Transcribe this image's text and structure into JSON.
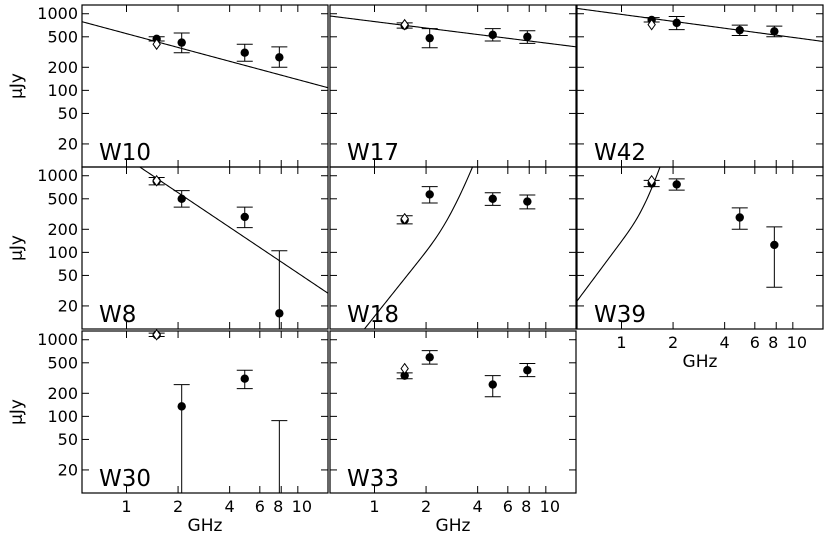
{
  "chart_data": {
    "type": "scatter",
    "xlabel": "GHz",
    "ylabel": "µJy",
    "x_scale": "log",
    "y_scale": "log",
    "xlim": [
      0.55,
      15
    ],
    "ylim": [
      10,
      1300
    ],
    "x_ticks": [
      1,
      2,
      4,
      6,
      8,
      10
    ],
    "x_tick_labels": [
      "1",
      "2",
      "4",
      "6",
      "8",
      "10"
    ],
    "y_ticks": [
      20,
      50,
      100,
      200,
      500,
      1000
    ],
    "y_tick_labels": [
      "20",
      "50",
      "100",
      "200",
      "500",
      "1000"
    ],
    "panels": [
      {
        "label": "W10",
        "points": [
          {
            "x": 1.5,
            "y": 470,
            "lo": 440,
            "hi": 500
          },
          {
            "x": 2.1,
            "y": 420,
            "lo": 310,
            "hi": 560
          },
          {
            "x": 4.9,
            "y": 310,
            "lo": 240,
            "hi": 400
          },
          {
            "x": 7.8,
            "y": 270,
            "lo": 200,
            "hi": 370
          }
        ],
        "open_points": [
          {
            "x": 1.5,
            "y": 400
          }
        ],
        "fit": {
          "kind": "powerlaw",
          "x0": 1,
          "s0": 550,
          "alpha": -0.6
        }
      },
      {
        "label": "W17",
        "points": [
          {
            "x": 1.5,
            "y": 700,
            "lo": 650,
            "hi": 760
          },
          {
            "x": 2.1,
            "y": 480,
            "lo": 360,
            "hi": 640
          },
          {
            "x": 4.9,
            "y": 530,
            "lo": 440,
            "hi": 640
          },
          {
            "x": 7.8,
            "y": 500,
            "lo": 410,
            "hi": 600
          }
        ],
        "open_points": [
          {
            "x": 1.5,
            "y": 720
          }
        ],
        "fit": {
          "kind": "powerlaw",
          "x0": 1,
          "s0": 790,
          "alpha": -0.28
        }
      },
      {
        "label": "W42",
        "points": [
          {
            "x": 1.5,
            "y": 830,
            "lo": 780,
            "hi": 890
          },
          {
            "x": 2.1,
            "y": 760,
            "lo": 620,
            "hi": 920
          },
          {
            "x": 4.9,
            "y": 610,
            "lo": 520,
            "hi": 710
          },
          {
            "x": 7.8,
            "y": 590,
            "lo": 500,
            "hi": 690
          }
        ],
        "open_points": [
          {
            "x": 1.5,
            "y": 720
          }
        ],
        "fit": {
          "kind": "powerlaw",
          "x0": 1,
          "s0": 980,
          "alpha": -0.3
        }
      },
      {
        "label": "W8",
        "points": [
          {
            "x": 1.5,
            "y": 850,
            "lo": 760,
            "hi": 950
          },
          {
            "x": 2.1,
            "y": 500,
            "lo": 390,
            "hi": 640
          },
          {
            "x": 4.9,
            "y": 290,
            "lo": 210,
            "hi": 390
          },
          {
            "x": 7.8,
            "y": 16,
            "lo": 10,
            "hi": 105
          }
        ],
        "open_points": [
          {
            "x": 1.5,
            "y": 860
          }
        ],
        "fit": {
          "kind": "powerlaw",
          "x0": 1,
          "s0": 1700,
          "alpha": -1.5
        }
      },
      {
        "label": "W18",
        "points": [
          {
            "x": 1.5,
            "y": 265,
            "lo": 235,
            "hi": 300
          },
          {
            "x": 2.1,
            "y": 570,
            "lo": 440,
            "hi": 720
          },
          {
            "x": 4.9,
            "y": 500,
            "lo": 410,
            "hi": 600
          },
          {
            "x": 7.8,
            "y": 460,
            "lo": 370,
            "hi": 560
          }
        ],
        "open_points": [
          {
            "x": 1.5,
            "y": 275
          }
        ],
        "fit": {
          "kind": "peaked",
          "peak_x": 3.2,
          "peak_y": 600,
          "rise": 2.8,
          "fall": -0.55
        }
      },
      {
        "label": "W39",
        "points": [
          {
            "x": 1.5,
            "y": 790,
            "lo": 720,
            "hi": 870
          },
          {
            "x": 2.1,
            "y": 770,
            "lo": 650,
            "hi": 910
          },
          {
            "x": 4.9,
            "y": 285,
            "lo": 200,
            "hi": 380
          },
          {
            "x": 7.8,
            "y": 125,
            "lo": 35,
            "hi": 215
          }
        ],
        "open_points": [
          {
            "x": 1.5,
            "y": 860
          }
        ],
        "fit": {
          "kind": "peaked",
          "peak_x": 1.55,
          "peak_y": 820,
          "rise": 3.0,
          "fall": -1.4
        }
      },
      {
        "label": "W30",
        "points": [
          {
            "x": 1.5,
            "y": 1150,
            "lo": 1100,
            "hi": 1220
          },
          {
            "x": 2.1,
            "y": 135,
            "lo": 10,
            "hi": 260
          },
          {
            "x": 4.9,
            "y": 310,
            "lo": 230,
            "hi": 400
          },
          {
            "x": 7.8,
            "y": 9,
            "lo": 10,
            "hi": 88
          }
        ],
        "open_points": [
          {
            "x": 1.5,
            "y": 1160
          }
        ]
      },
      {
        "label": "W33",
        "points": [
          {
            "x": 1.5,
            "y": 340,
            "lo": 310,
            "hi": 370
          },
          {
            "x": 2.1,
            "y": 590,
            "lo": 480,
            "hi": 720
          },
          {
            "x": 4.9,
            "y": 260,
            "lo": 180,
            "hi": 340
          },
          {
            "x": 7.8,
            "y": 400,
            "lo": 330,
            "hi": 490
          }
        ],
        "open_points": [
          {
            "x": 1.5,
            "y": 420
          }
        ]
      }
    ]
  }
}
